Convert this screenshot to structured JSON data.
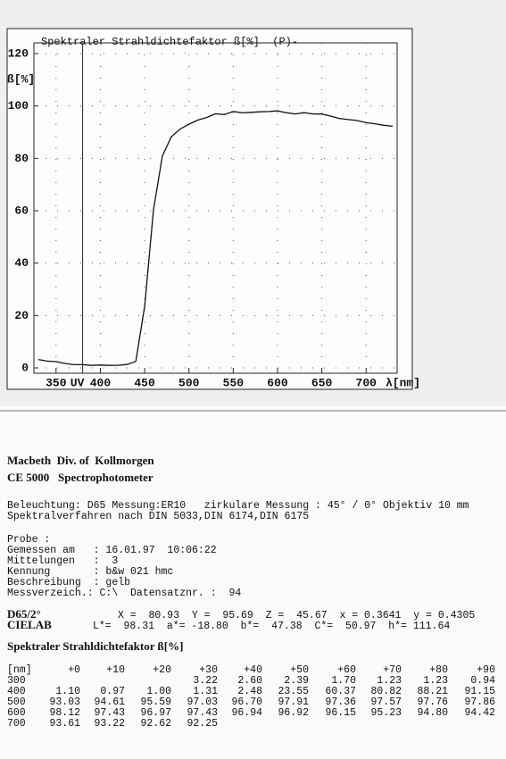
{
  "chart_data": {
    "type": "line",
    "title": "Spektraler Strahldichtefaktor ß[%]  (P)-",
    "ylabel": "ß[%]",
    "xlabel": "λ[nm]",
    "x": [
      330,
      340,
      350,
      360,
      370,
      380,
      390,
      400,
      410,
      420,
      430,
      440,
      450,
      460,
      470,
      480,
      490,
      500,
      510,
      520,
      530,
      540,
      550,
      560,
      570,
      580,
      590,
      600,
      610,
      620,
      630,
      640,
      650,
      660,
      670,
      680,
      690,
      700,
      710,
      720,
      730
    ],
    "values": [
      3.22,
      2.6,
      2.39,
      1.7,
      1.23,
      1.23,
      0.94,
      1.1,
      0.97,
      1.0,
      1.31,
      2.48,
      23.55,
      60.37,
      80.82,
      88.21,
      91.15,
      93.03,
      94.61,
      95.59,
      97.03,
      96.7,
      97.91,
      97.36,
      97.57,
      97.76,
      97.86,
      98.12,
      97.43,
      96.97,
      97.43,
      96.94,
      96.92,
      96.15,
      95.23,
      94.8,
      94.42,
      93.61,
      93.22,
      92.62,
      92.25
    ],
    "color": "#111111",
    "xlim": [
      325,
      735
    ],
    "xticks": [
      350,
      400,
      450,
      500,
      550,
      600,
      650,
      700
    ],
    "ylim": [
      0,
      120
    ],
    "yticks": [
      0,
      20,
      40,
      60,
      80,
      100,
      120
    ],
    "grid": true,
    "annotations": [
      {
        "x": 380,
        "label": "UV"
      }
    ]
  },
  "header": {
    "company": "Macbeth  Div. of  Kollmorgen",
    "model": "CE 5000   Spectrophotometer"
  },
  "settings": [
    "Beleuchtung: D65 Messung:ER10   zirkulare Messung : 45° / 0° Objektiv 10 mm",
    "Spektralverfahren nach DIN 5033,DIN 6174,DIN 6175"
  ],
  "probe": [
    "Probe :",
    "Gemessen am   : 16.01.97  10:06:22",
    "Mittelungen   :  3",
    "Kennung       : b&w 021 hmc",
    "Beschreibung  : gelb",
    "Messverzeich.: C:\\  Datensatznr. :  94"
  ],
  "colorimetry": {
    "d65_label": "D65/2°",
    "d65_values": "X =  80.93  Y =  95.69  Z =  45.67  x = 0.3641  y = 0.4305",
    "cielab_label": "CIELAB",
    "cielab_values": "L*=  98.31  a*= -18.80  b*=  47.38  C*=  50.97  h*= 111.64"
  },
  "table": {
    "title": "Spektraler Strahldichtefaktor ß[%]",
    "header": [
      "[nm]",
      "+0",
      "+10",
      "+20",
      "+30",
      "+40",
      "+50",
      "+60",
      "+70",
      "+80",
      "+90"
    ],
    "rows": [
      [
        "300",
        null,
        null,
        null,
        "3.22",
        "2.60",
        "2.39",
        "1.70",
        "1.23",
        "1.23",
        "0.94"
      ],
      [
        "400",
        "1.10",
        "0.97",
        "1.00",
        "1.31",
        "2.48",
        "23.55",
        "60.37",
        "80.82",
        "88.21",
        "91.15"
      ],
      [
        "500",
        "93.03",
        "94.61",
        "95.59",
        "97.03",
        "96.70",
        "97.91",
        "97.36",
        "97.57",
        "97.76",
        "97.86"
      ],
      [
        "600",
        "98.12",
        "97.43",
        "96.97",
        "97.43",
        "96.94",
        "96.92",
        "96.15",
        "95.23",
        "94.80",
        "94.42"
      ],
      [
        "700",
        "93.61",
        "93.22",
        "92.62",
        "92.25"
      ]
    ]
  }
}
